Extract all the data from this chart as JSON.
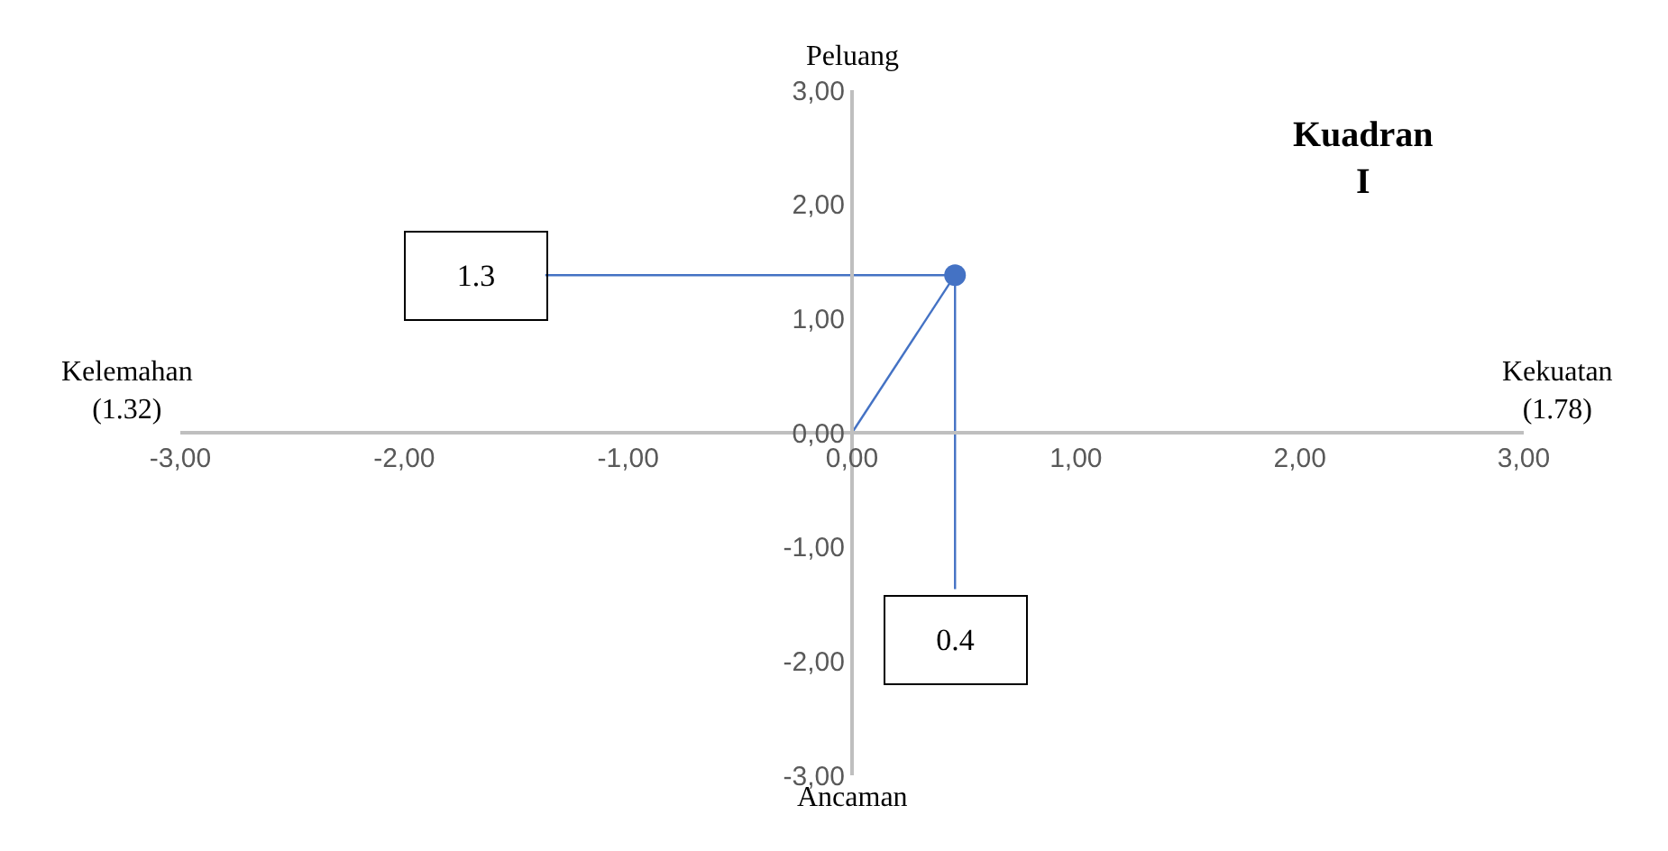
{
  "chart_data": {
    "type": "scatter",
    "series": [
      {
        "type": "line",
        "color": "#4472c4",
        "x": [
          -1.37,
          0.46
        ],
        "values": [
          1.38,
          1.38
        ],
        "marker": "none"
      },
      {
        "type": "line",
        "color": "#4472c4",
        "x": [
          0.46,
          0.46
        ],
        "values": [
          1.38,
          -1.37
        ],
        "marker": "none"
      },
      {
        "type": "line",
        "color": "#4472c4",
        "x": [
          0,
          0.46
        ],
        "values": [
          0,
          1.38
        ],
        "marker": "none"
      },
      {
        "color": "#4472c4",
        "x": [
          0.46
        ],
        "values": [
          1.38
        ]
      }
    ],
    "annotations": [
      "1.3",
      "0.4",
      "Peluang",
      "Ancaman",
      "Kelemahan (1.32)",
      "Kekuatan (1.78)",
      "Kuadran I"
    ],
    "xlim": [
      -3,
      3
    ],
    "ylim": [
      -3,
      3
    ],
    "xticks": [
      {
        "value": -3,
        "label": "-3,00"
      },
      {
        "value": -2,
        "label": "-2,00"
      },
      {
        "value": -1,
        "label": "-1,00"
      },
      {
        "value": 0,
        "label": "0,00"
      },
      {
        "value": 1,
        "label": "1,00"
      },
      {
        "value": 2,
        "label": "2,00"
      },
      {
        "value": 3,
        "label": "3,00"
      }
    ],
    "yticks": [
      {
        "value": -3,
        "label": "-3,00"
      },
      {
        "value": -2,
        "label": "-2,00"
      },
      {
        "value": -1,
        "label": "-1,00"
      },
      {
        "value": 0,
        "label": "0,00"
      },
      {
        "value": 1,
        "label": "1,00"
      },
      {
        "value": 2,
        "label": "2,00"
      },
      {
        "value": 3,
        "label": "3,00"
      }
    ],
    "marker": "circle"
  }
}
